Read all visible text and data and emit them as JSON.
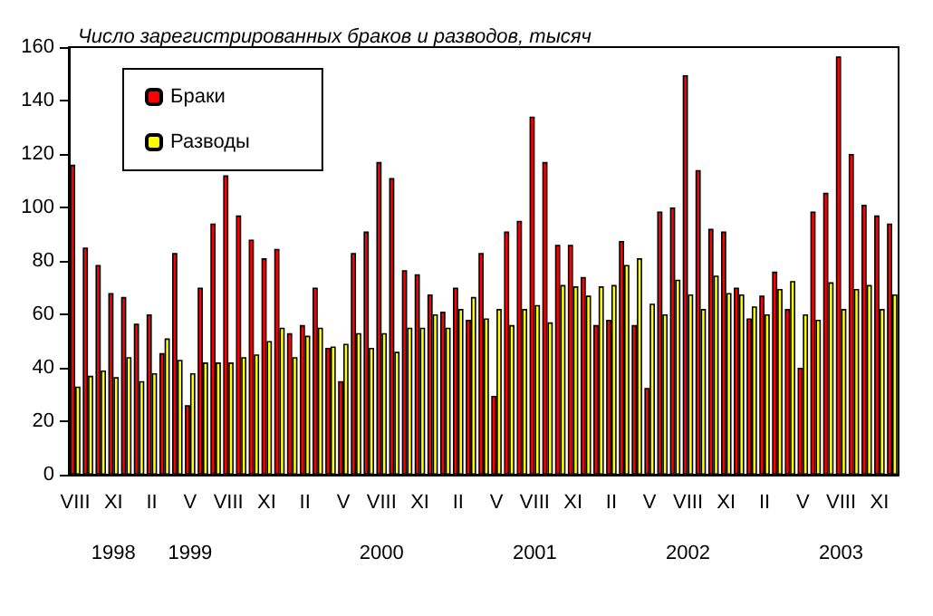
{
  "chart_data": {
    "type": "bar",
    "title": "Число зарегистрированных браков и разводов, тысяч",
    "categories": [
      "VIII",
      null,
      null,
      "XI\n\n1998",
      null,
      null,
      "II",
      null,
      null,
      "V\n\n1999",
      null,
      null,
      "VIII",
      null,
      null,
      "XI",
      null,
      null,
      "II",
      null,
      null,
      "V",
      null,
      null,
      "VIII\n\n2000",
      null,
      null,
      "XI",
      null,
      null,
      "II",
      null,
      null,
      "V",
      null,
      null,
      "VIII\n\n2001",
      null,
      null,
      "XI",
      null,
      null,
      "II",
      null,
      null,
      "V",
      null,
      null,
      "VIII\n\n2002",
      null,
      null,
      "XI",
      null,
      null,
      "II",
      null,
      null,
      "V",
      null,
      null,
      "VIII\n\n2003",
      null,
      null,
      "XI",
      null
    ],
    "series": [
      {
        "name": "Браки",
        "color": "#ff0000",
        "values": [
          116,
          85,
          78.5,
          68,
          66.5,
          56.5,
          60,
          45.5,
          83,
          26,
          70,
          94,
          112,
          97,
          88,
          81,
          84.5,
          53,
          56,
          70,
          47.5,
          35,
          83,
          91,
          117,
          111,
          76.5,
          75,
          67.5,
          61,
          70,
          58,
          83,
          29.5,
          91,
          95,
          134,
          117,
          86,
          86,
          74,
          56,
          58,
          87.5,
          56,
          32.5,
          98.5,
          100,
          149.5,
          114,
          92,
          91,
          70,
          58.5,
          67,
          76,
          62,
          40,
          98.5,
          105.5,
          156.5,
          120,
          101,
          97,
          94
        ]
      },
      {
        "name": "Разводы",
        "color": "#ffff00",
        "values": [
          33,
          37,
          39,
          36.5,
          44,
          35,
          38,
          51,
          43,
          38,
          42,
          42,
          42,
          44,
          45,
          50,
          55,
          44,
          52,
          55,
          48,
          49,
          53,
          47.5,
          53,
          46,
          55,
          55,
          60,
          55,
          62,
          66.5,
          58.5,
          62,
          56,
          62,
          63.5,
          57,
          71,
          70.5,
          67,
          70.5,
          71,
          78.5,
          81,
          64,
          60,
          73,
          67.5,
          62,
          74.5,
          68,
          67.5,
          63,
          60,
          69.5,
          72.5,
          60,
          58,
          72,
          62,
          69.5,
          71,
          62,
          67.5
        ]
      }
    ],
    "ylim": [
      0,
      160
    ],
    "yticks": [
      0,
      20,
      40,
      60,
      80,
      100,
      120,
      140,
      160
    ],
    "grid": false,
    "legend": "top left"
  }
}
